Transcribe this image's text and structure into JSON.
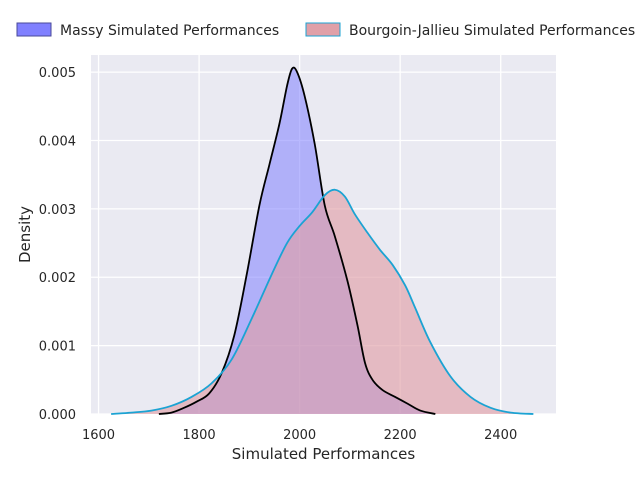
{
  "chart_data": {
    "type": "area",
    "title": "",
    "xlabel": "Simulated Performances",
    "ylabel": "Density",
    "xlim": [
      1585,
      2510
    ],
    "ylim": [
      0,
      0.00525
    ],
    "xticks": [
      1600,
      1800,
      2000,
      2200,
      2400
    ],
    "yticks": [
      0.0,
      0.001,
      0.002,
      0.003,
      0.004,
      0.005
    ],
    "grid": true,
    "legend_placement": "top",
    "series": [
      {
        "name": "Massy Simulated Performances",
        "fill": "#8080ff",
        "stroke": "#000000",
        "points": [
          [
            1720,
            0
          ],
          [
            1745,
            2e-05
          ],
          [
            1770,
            9e-05
          ],
          [
            1795,
            0.00018
          ],
          [
            1820,
            0.0003
          ],
          [
            1845,
            0.0006
          ],
          [
            1870,
            0.00115
          ],
          [
            1895,
            0.00205
          ],
          [
            1920,
            0.00305
          ],
          [
            1940,
            0.00365
          ],
          [
            1960,
            0.00425
          ],
          [
            1975,
            0.0048
          ],
          [
            1985,
            0.00505
          ],
          [
            1995,
            0.005
          ],
          [
            2010,
            0.00465
          ],
          [
            2030,
            0.00395
          ],
          [
            2050,
            0.00305
          ],
          [
            2070,
            0.0026
          ],
          [
            2095,
            0.00195
          ],
          [
            2115,
            0.0013
          ],
          [
            2130,
            0.00075
          ],
          [
            2145,
            0.0005
          ],
          [
            2165,
            0.00035
          ],
          [
            2190,
            0.00025
          ],
          [
            2215,
            0.00015
          ],
          [
            2240,
            5e-05
          ],
          [
            2270,
            0
          ]
        ]
      },
      {
        "name": "Bourgoin-Jallieu Simulated Performances",
        "fill": "#e0a0a8",
        "stroke": "#1ba3d3",
        "points": [
          [
            1625,
            0
          ],
          [
            1665,
            2e-05
          ],
          [
            1705,
            5e-05
          ],
          [
            1745,
            0.00012
          ],
          [
            1785,
            0.00025
          ],
          [
            1825,
            0.00045
          ],
          [
            1865,
            0.0008
          ],
          [
            1905,
            0.0014
          ],
          [
            1945,
            0.00205
          ],
          [
            1975,
            0.0025
          ],
          [
            2000,
            0.00275
          ],
          [
            2025,
            0.00295
          ],
          [
            2050,
            0.0032
          ],
          [
            2070,
            0.00328
          ],
          [
            2090,
            0.00318
          ],
          [
            2110,
            0.00292
          ],
          [
            2135,
            0.00265
          ],
          [
            2160,
            0.0024
          ],
          [
            2185,
            0.00218
          ],
          [
            2210,
            0.00188
          ],
          [
            2230,
            0.00155
          ],
          [
            2260,
            0.00105
          ],
          [
            2300,
            0.00055
          ],
          [
            2340,
            0.00025
          ],
          [
            2380,
            9e-05
          ],
          [
            2420,
            2e-05
          ],
          [
            2465,
            0
          ]
        ]
      }
    ]
  },
  "colors": {
    "background": "#eaeaf2",
    "grid": "#ffffff",
    "massy_fill": "#8080ff",
    "bourgoin_fill": "#e0a0a8",
    "massy_line": "#000000",
    "bourgoin_line": "#1ba3d3"
  }
}
